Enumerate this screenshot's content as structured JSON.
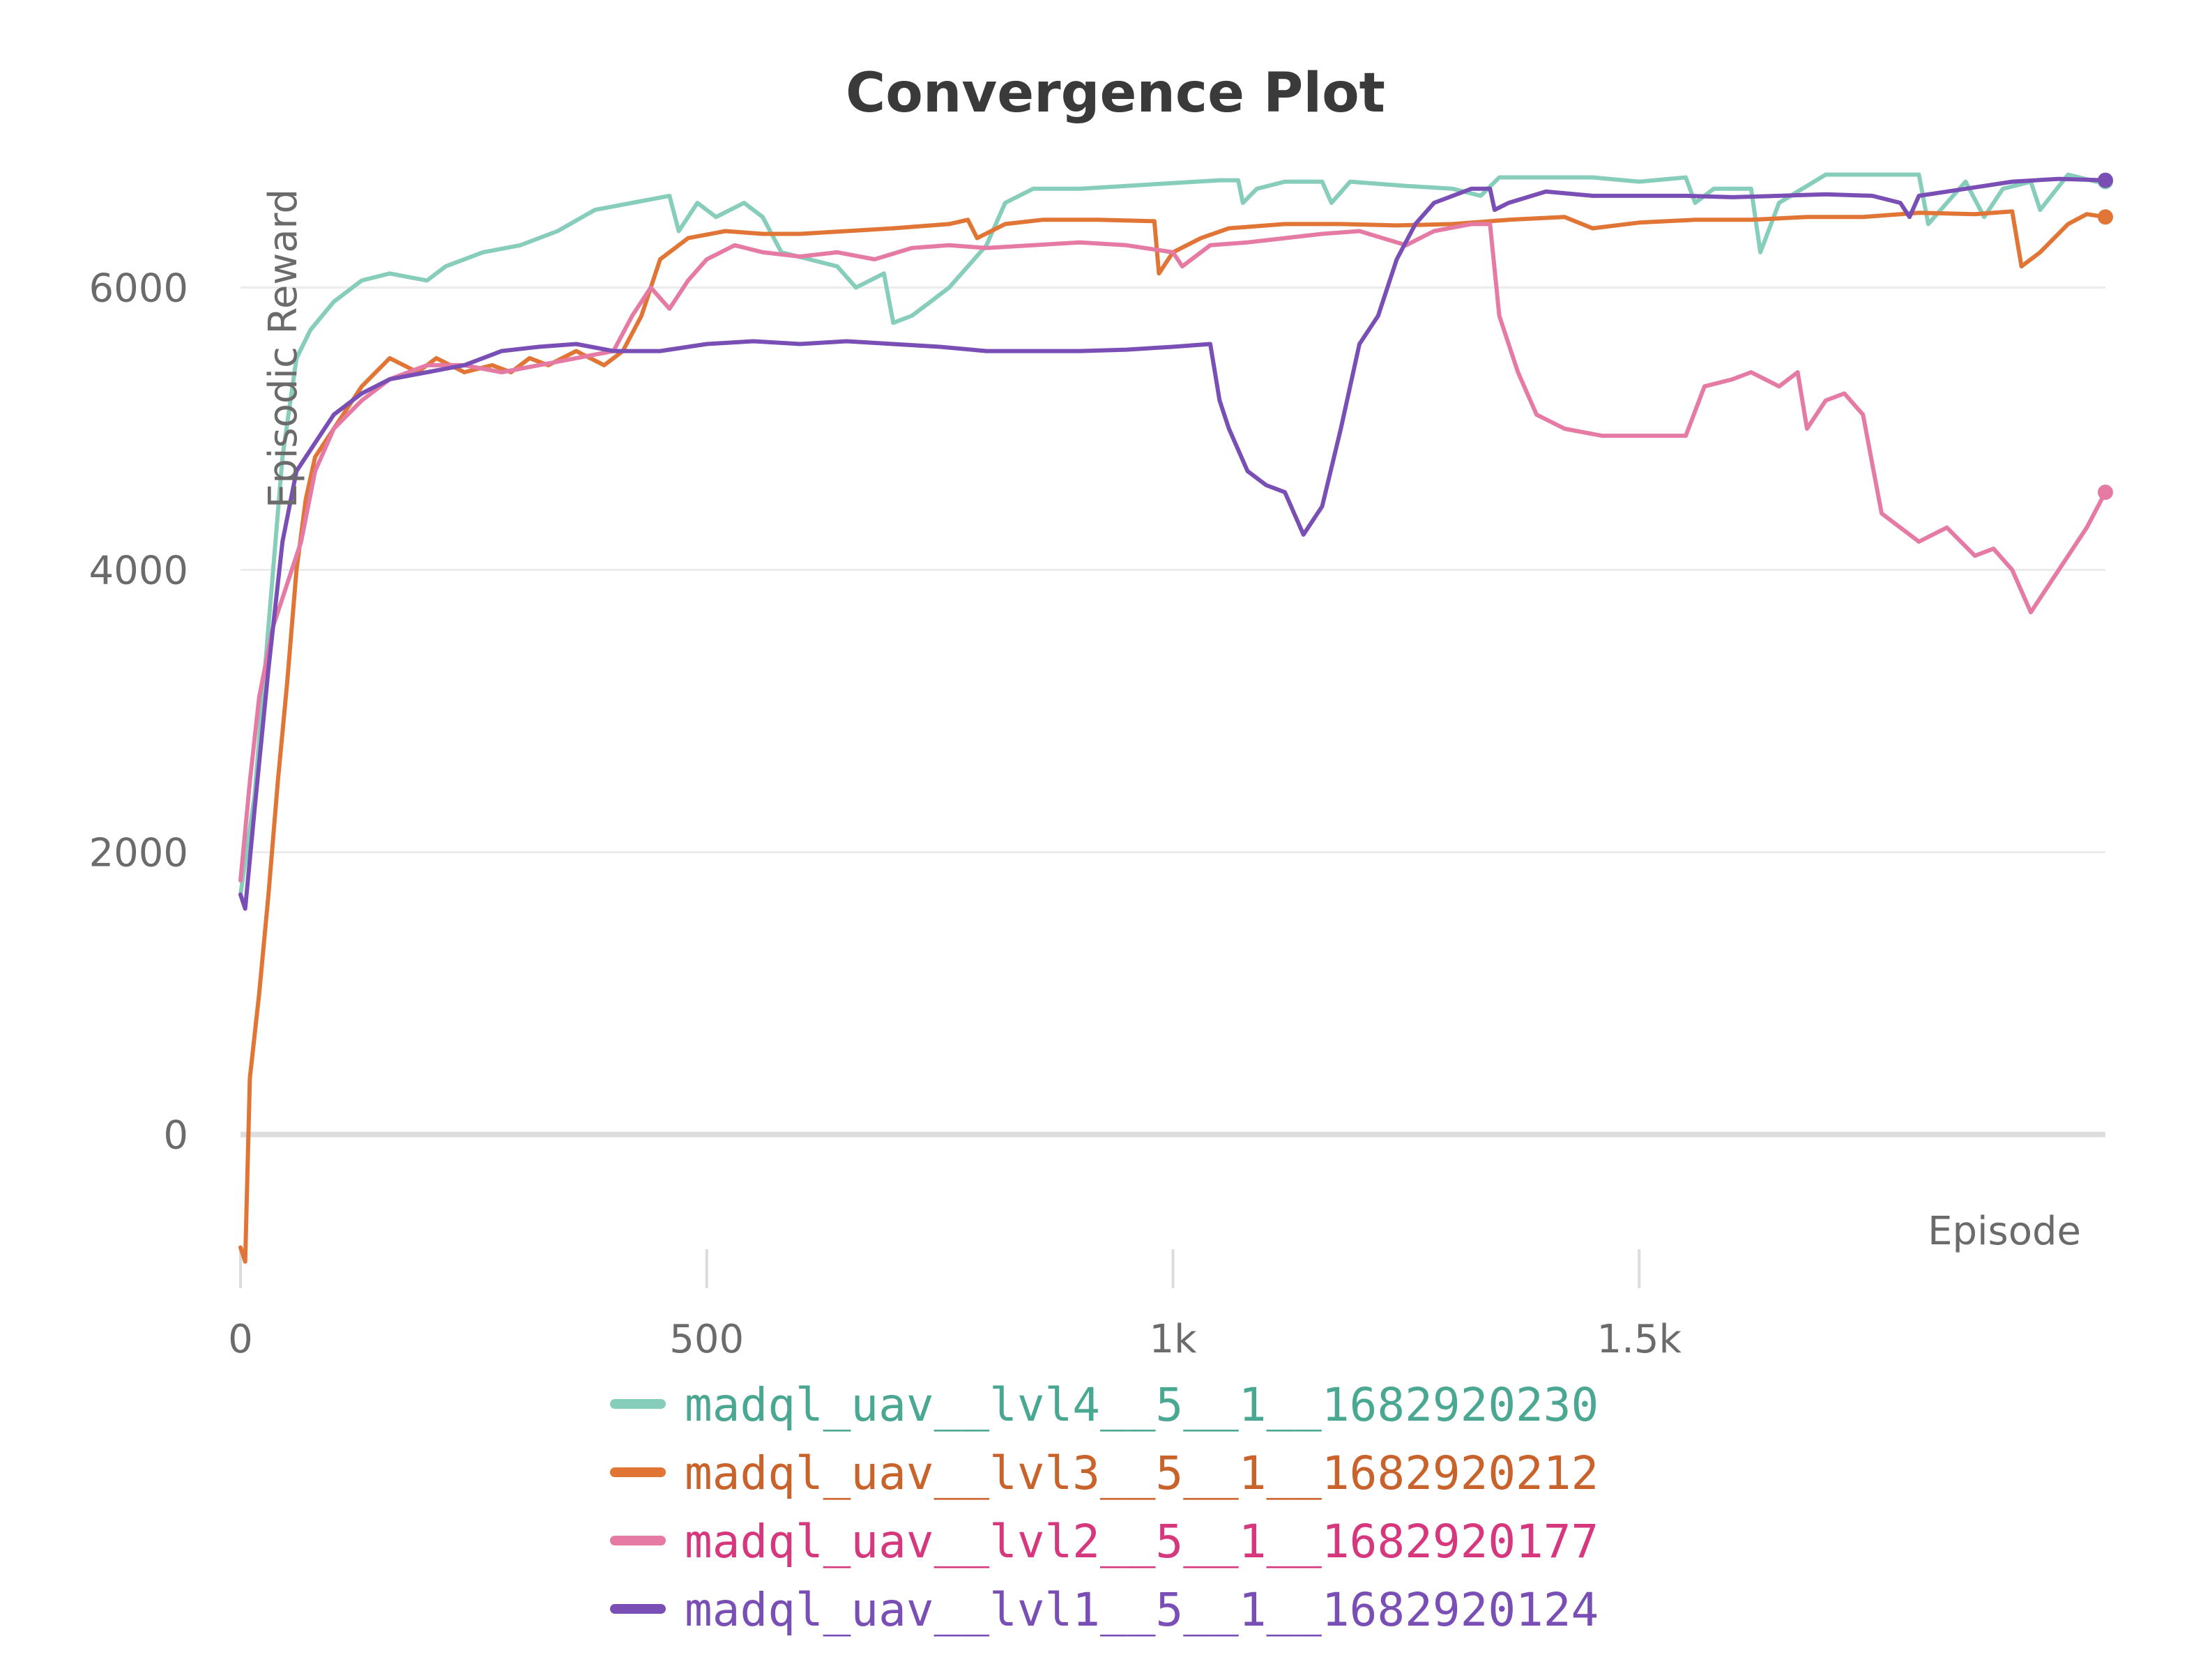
{
  "chart_data": {
    "type": "line",
    "title": "Convergence Plot",
    "xlabel": "Episode",
    "ylabel": "Episodic Reward",
    "xlim": [
      0,
      2000
    ],
    "ylim": [
      -1000,
      7000
    ],
    "x_ticks": [
      {
        "value": 0,
        "label": "0"
      },
      {
        "value": 500,
        "label": "500"
      },
      {
        "value": 1000,
        "label": "1k"
      },
      {
        "value": 1500,
        "label": "1.5k"
      }
    ],
    "y_ticks": [
      {
        "value": 0,
        "label": "0"
      },
      {
        "value": 2000,
        "label": "2000"
      },
      {
        "value": 4000,
        "label": "4000"
      },
      {
        "value": 6000,
        "label": "6000"
      }
    ],
    "grid": true,
    "legend_position": "bottom",
    "series": [
      {
        "name": "madql_uav__lvl4__5__1__1682920230",
        "color": "#87cdbb",
        "text_color": "#4aa892",
        "points": [
          [
            0,
            1700
          ],
          [
            15,
            2400
          ],
          [
            30,
            3600
          ],
          [
            45,
            4800
          ],
          [
            60,
            5500
          ],
          [
            75,
            5700
          ],
          [
            100,
            5900
          ],
          [
            130,
            6050
          ],
          [
            160,
            6100
          ],
          [
            200,
            6050
          ],
          [
            220,
            6150
          ],
          [
            260,
            6250
          ],
          [
            300,
            6300
          ],
          [
            340,
            6400
          ],
          [
            380,
            6550
          ],
          [
            420,
            6600
          ],
          [
            460,
            6650
          ],
          [
            470,
            6400
          ],
          [
            490,
            6600
          ],
          [
            510,
            6500
          ],
          [
            540,
            6600
          ],
          [
            560,
            6500
          ],
          [
            580,
            6250
          ],
          [
            610,
            6200
          ],
          [
            640,
            6150
          ],
          [
            660,
            6000
          ],
          [
            690,
            6100
          ],
          [
            700,
            5750
          ],
          [
            720,
            5800
          ],
          [
            740,
            5900
          ],
          [
            760,
            6000
          ],
          [
            780,
            6150
          ],
          [
            800,
            6300
          ],
          [
            820,
            6600
          ],
          [
            850,
            6700
          ],
          [
            900,
            6700
          ],
          [
            950,
            6720
          ],
          [
            1000,
            6740
          ],
          [
            1050,
            6760
          ],
          [
            1070,
            6760
          ],
          [
            1075,
            6600
          ],
          [
            1090,
            6700
          ],
          [
            1120,
            6750
          ],
          [
            1160,
            6750
          ],
          [
            1170,
            6600
          ],
          [
            1190,
            6750
          ],
          [
            1250,
            6720
          ],
          [
            1300,
            6700
          ],
          [
            1330,
            6650
          ],
          [
            1350,
            6780
          ],
          [
            1400,
            6780
          ],
          [
            1450,
            6780
          ],
          [
            1500,
            6750
          ],
          [
            1550,
            6780
          ],
          [
            1560,
            6600
          ],
          [
            1580,
            6700
          ],
          [
            1620,
            6700
          ],
          [
            1630,
            6250
          ],
          [
            1650,
            6600
          ],
          [
            1700,
            6800
          ],
          [
            1750,
            6800
          ],
          [
            1800,
            6800
          ],
          [
            1810,
            6450
          ],
          [
            1830,
            6600
          ],
          [
            1850,
            6750
          ],
          [
            1870,
            6500
          ],
          [
            1890,
            6700
          ],
          [
            1920,
            6750
          ],
          [
            1930,
            6550
          ],
          [
            1960,
            6800
          ],
          [
            1990,
            6750
          ],
          [
            2000,
            6750
          ]
        ]
      },
      {
        "name": "madql_uav__lvl3__5__1__1682920212",
        "color": "#e07536",
        "text_color": "#c9632c",
        "points": [
          [
            0,
            -800
          ],
          [
            5,
            -900
          ],
          [
            10,
            400
          ],
          [
            20,
            1000
          ],
          [
            30,
            1700
          ],
          [
            40,
            2500
          ],
          [
            50,
            3200
          ],
          [
            60,
            4000
          ],
          [
            70,
            4500
          ],
          [
            80,
            4800
          ],
          [
            100,
            5000
          ],
          [
            130,
            5300
          ],
          [
            160,
            5500
          ],
          [
            190,
            5400
          ],
          [
            210,
            5500
          ],
          [
            240,
            5400
          ],
          [
            270,
            5450
          ],
          [
            290,
            5400
          ],
          [
            310,
            5500
          ],
          [
            330,
            5450
          ],
          [
            360,
            5550
          ],
          [
            390,
            5450
          ],
          [
            410,
            5550
          ],
          [
            430,
            5800
          ],
          [
            450,
            6200
          ],
          [
            480,
            6350
          ],
          [
            520,
            6400
          ],
          [
            560,
            6380
          ],
          [
            600,
            6380
          ],
          [
            650,
            6400
          ],
          [
            700,
            6420
          ],
          [
            760,
            6450
          ],
          [
            780,
            6480
          ],
          [
            790,
            6350
          ],
          [
            820,
            6450
          ],
          [
            860,
            6480
          ],
          [
            920,
            6480
          ],
          [
            980,
            6470
          ],
          [
            985,
            6100
          ],
          [
            1000,
            6250
          ],
          [
            1030,
            6350
          ],
          [
            1060,
            6420
          ],
          [
            1120,
            6450
          ],
          [
            1180,
            6450
          ],
          [
            1240,
            6440
          ],
          [
            1300,
            6450
          ],
          [
            1360,
            6480
          ],
          [
            1420,
            6500
          ],
          [
            1450,
            6420
          ],
          [
            1500,
            6460
          ],
          [
            1560,
            6480
          ],
          [
            1620,
            6480
          ],
          [
            1680,
            6500
          ],
          [
            1740,
            6500
          ],
          [
            1800,
            6530
          ],
          [
            1860,
            6520
          ],
          [
            1900,
            6540
          ],
          [
            1910,
            6150
          ],
          [
            1930,
            6250
          ],
          [
            1960,
            6450
          ],
          [
            1980,
            6520
          ],
          [
            2000,
            6500
          ]
        ]
      },
      {
        "name": "madql_uav__lvl2__5__1__1682920177",
        "color": "#e57aa5",
        "text_color": "#d6387e",
        "points": [
          [
            0,
            1800
          ],
          [
            10,
            2500
          ],
          [
            20,
            3100
          ],
          [
            35,
            3600
          ],
          [
            50,
            3900
          ],
          [
            65,
            4200
          ],
          [
            80,
            4700
          ],
          [
            100,
            5000
          ],
          [
            130,
            5200
          ],
          [
            160,
            5350
          ],
          [
            200,
            5450
          ],
          [
            240,
            5450
          ],
          [
            280,
            5400
          ],
          [
            320,
            5450
          ],
          [
            360,
            5500
          ],
          [
            400,
            5550
          ],
          [
            420,
            5800
          ],
          [
            440,
            6000
          ],
          [
            460,
            5850
          ],
          [
            480,
            6050
          ],
          [
            500,
            6200
          ],
          [
            530,
            6300
          ],
          [
            560,
            6250
          ],
          [
            600,
            6220
          ],
          [
            640,
            6250
          ],
          [
            680,
            6200
          ],
          [
            720,
            6280
          ],
          [
            760,
            6300
          ],
          [
            800,
            6280
          ],
          [
            850,
            6300
          ],
          [
            900,
            6320
          ],
          [
            950,
            6300
          ],
          [
            1000,
            6250
          ],
          [
            1010,
            6150
          ],
          [
            1040,
            6300
          ],
          [
            1080,
            6320
          ],
          [
            1120,
            6350
          ],
          [
            1160,
            6380
          ],
          [
            1200,
            6400
          ],
          [
            1250,
            6300
          ],
          [
            1280,
            6400
          ],
          [
            1320,
            6450
          ],
          [
            1340,
            6450
          ],
          [
            1350,
            5800
          ],
          [
            1370,
            5400
          ],
          [
            1390,
            5100
          ],
          [
            1420,
            5000
          ],
          [
            1460,
            4950
          ],
          [
            1510,
            4950
          ],
          [
            1550,
            4950
          ],
          [
            1570,
            5300
          ],
          [
            1600,
            5350
          ],
          [
            1620,
            5400
          ],
          [
            1650,
            5300
          ],
          [
            1670,
            5400
          ],
          [
            1680,
            5000
          ],
          [
            1700,
            5200
          ],
          [
            1720,
            5250
          ],
          [
            1740,
            5100
          ],
          [
            1760,
            4400
          ],
          [
            1780,
            4300
          ],
          [
            1800,
            4200
          ],
          [
            1830,
            4300
          ],
          [
            1860,
            4100
          ],
          [
            1880,
            4150
          ],
          [
            1900,
            4000
          ],
          [
            1920,
            3700
          ],
          [
            1940,
            3900
          ],
          [
            1960,
            4100
          ],
          [
            1980,
            4300
          ],
          [
            2000,
            4550
          ]
        ]
      },
      {
        "name": "madql_uav__lvl1__5__1__1682920124",
        "color": "#7a4fb5",
        "text_color": "#7a4fb5",
        "points": [
          [
            0,
            1700
          ],
          [
            5,
            1600
          ],
          [
            15,
            2300
          ],
          [
            30,
            3300
          ],
          [
            45,
            4200
          ],
          [
            60,
            4700
          ],
          [
            80,
            4900
          ],
          [
            100,
            5100
          ],
          [
            130,
            5250
          ],
          [
            160,
            5350
          ],
          [
            200,
            5400
          ],
          [
            240,
            5450
          ],
          [
            280,
            5550
          ],
          [
            320,
            5580
          ],
          [
            360,
            5600
          ],
          [
            400,
            5550
          ],
          [
            450,
            5550
          ],
          [
            500,
            5600
          ],
          [
            550,
            5620
          ],
          [
            600,
            5600
          ],
          [
            650,
            5620
          ],
          [
            700,
            5600
          ],
          [
            750,
            5580
          ],
          [
            800,
            5550
          ],
          [
            850,
            5550
          ],
          [
            900,
            5550
          ],
          [
            950,
            5560
          ],
          [
            1000,
            5580
          ],
          [
            1040,
            5600
          ],
          [
            1050,
            5200
          ],
          [
            1060,
            5000
          ],
          [
            1080,
            4700
          ],
          [
            1100,
            4600
          ],
          [
            1120,
            4550
          ],
          [
            1140,
            4250
          ],
          [
            1160,
            4450
          ],
          [
            1180,
            5000
          ],
          [
            1200,
            5600
          ],
          [
            1220,
            5800
          ],
          [
            1240,
            6200
          ],
          [
            1260,
            6450
          ],
          [
            1280,
            6600
          ],
          [
            1300,
            6650
          ],
          [
            1320,
            6700
          ],
          [
            1340,
            6700
          ],
          [
            1345,
            6550
          ],
          [
            1360,
            6600
          ],
          [
            1400,
            6680
          ],
          [
            1450,
            6650
          ],
          [
            1500,
            6650
          ],
          [
            1550,
            6650
          ],
          [
            1600,
            6640
          ],
          [
            1650,
            6650
          ],
          [
            1700,
            6660
          ],
          [
            1750,
            6650
          ],
          [
            1780,
            6600
          ],
          [
            1790,
            6500
          ],
          [
            1800,
            6650
          ],
          [
            1850,
            6700
          ],
          [
            1900,
            6750
          ],
          [
            1950,
            6770
          ],
          [
            2000,
            6760
          ]
        ]
      }
    ]
  }
}
